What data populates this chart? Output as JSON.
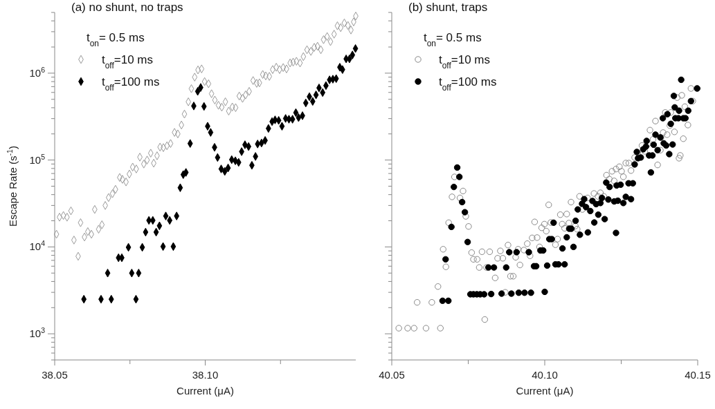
{
  "chart_data": [
    {
      "type": "scatter",
      "title": "(a) no shunt, no traps",
      "legend_title": "t$_{on}$= 0.5 ms",
      "xlabel": "Current (μA)",
      "ylabel": "Escape Rate (s$^{-1}$)",
      "log": "y",
      "legend": "top left",
      "grid": false,
      "xlim": [
        38.05,
        38.15
      ],
      "xticks": [
        38.05,
        {
          "value": 38.075,
          "label": null
        },
        {
          "value": 38.1,
          "label": "38.10"
        },
        {
          "value": 38.125,
          "label": null
        }
      ],
      "ylim": [
        500,
        5000000
      ],
      "yticks": [
        {
          "value": 500,
          "label": null
        },
        {
          "value": 600,
          "label": null
        },
        {
          "value": 700,
          "label": null
        },
        {
          "value": 800,
          "label": null
        },
        {
          "value": 900,
          "label": null
        },
        {
          "value": 1000,
          "label": "10$^{3}$"
        },
        {
          "value": 2000,
          "label": null
        },
        {
          "value": 3000,
          "label": null
        },
        {
          "value": 4000,
          "label": null
        },
        {
          "value": 5000,
          "label": null
        },
        {
          "value": 6000,
          "label": null
        },
        {
          "value": 7000,
          "label": null
        },
        {
          "value": 8000,
          "label": null
        },
        {
          "value": 9000,
          "label": null
        },
        {
          "value": 10000,
          "label": "10$^{4}$"
        },
        {
          "value": 20000,
          "label": null
        },
        {
          "value": 30000,
          "label": null
        },
        {
          "value": 40000,
          "label": null
        },
        {
          "value": 50000,
          "label": null
        },
        {
          "value": 60000,
          "label": null
        },
        {
          "value": 70000,
          "label": null
        },
        {
          "value": 80000,
          "label": null
        },
        {
          "value": 90000,
          "label": null
        },
        {
          "value": 100000,
          "label": "10$^{5}$"
        },
        {
          "value": 200000,
          "label": null
        },
        {
          "value": 300000,
          "label": null
        },
        {
          "value": 400000,
          "label": null
        },
        {
          "value": 500000,
          "label": null
        },
        {
          "value": 600000,
          "label": null
        },
        {
          "value": 700000,
          "label": null
        },
        {
          "value": 800000,
          "label": null
        },
        {
          "value": 900000,
          "label": null
        },
        {
          "value": 1000000,
          "label": "10$^{6}$"
        },
        {
          "value": 2000000,
          "label": null
        },
        {
          "value": 3000000,
          "label": null
        },
        {
          "value": 4000000,
          "label": null
        },
        {
          "value": 5000000,
          "label": null
        }
      ],
      "marker": "diamond",
      "series": [
        {
          "name": "t$_{off}$=10 ms",
          "color": "#999999",
          "x": [
            38.0506,
            38.0516,
            38.0529,
            38.0541,
            38.0554,
            38.0564,
            38.0578,
            38.0586,
            38.0599,
            38.061,
            38.0622,
            38.0633,
            38.0646,
            38.0657,
            38.0668,
            38.0679,
            38.0692,
            38.0702,
            38.0716,
            38.0725,
            38.0737,
            38.0748,
            38.0759,
            38.0771,
            38.0783,
            38.0796,
            38.0807,
            38.0819,
            38.0829,
            38.084,
            38.085,
            38.0861,
            38.0873,
            38.0885,
            38.0898,
            38.0909,
            38.0921,
            38.0931,
            38.0944,
            38.0954,
            38.0965,
            38.0976,
            38.0988,
            38.0998,
            38.1011,
            38.1021,
            38.1032,
            38.1044,
            38.1055,
            38.1067,
            38.1078,
            38.109,
            38.1101,
            38.1113,
            38.1124,
            38.1134,
            38.1146,
            38.1159,
            38.1171,
            38.118,
            38.1191,
            38.1201,
            38.1213,
            38.1224,
            38.1236,
            38.1247,
            38.1259,
            38.127,
            38.1282,
            38.1292,
            38.1303,
            38.1315,
            38.1326,
            38.1338,
            38.1351,
            38.1362,
            38.1373,
            38.1384,
            38.1393,
            38.1405,
            38.1416,
            38.1428,
            38.1439,
            38.145,
            38.1462,
            38.1474,
            38.1484,
            38.1493,
            38.15
          ],
          "values": [
            14000,
            22000,
            23000,
            22000,
            26000,
            12000,
            7800,
            19000,
            13000,
            15000,
            14000,
            27000,
            16000,
            18000,
            30000,
            37000,
            41000,
            46000,
            63000,
            60000,
            56000,
            69000,
            83000,
            79000,
            108000,
            90000,
            100000,
            120000,
            92000,
            112000,
            141000,
            139000,
            146000,
            155000,
            208000,
            200000,
            253000,
            338000,
            468000,
            663000,
            900000,
            1090000,
            1120000,
            800000,
            755000,
            580000,
            490000,
            427000,
            406000,
            468000,
            366000,
            408000,
            401000,
            545000,
            513000,
            562000,
            617000,
            822000,
            764000,
            774000,
            966000,
            931000,
            918000,
            1100000,
            1170000,
            1100000,
            1160000,
            1120000,
            1310000,
            1340000,
            1370000,
            1310000,
            1550000,
            1860000,
            1780000,
            1980000,
            2040000,
            1860000,
            2430000,
            2640000,
            2310000,
            2810000,
            3510000,
            3340000,
            3780000,
            3540000,
            3140000,
            3890000,
            4540000
          ]
        },
        {
          "name": "t$_{off}$=100 ms",
          "color": "#000000",
          "x": [
            38.0597,
            38.0654,
            38.0688,
            38.077,
            38.0676,
            38.0756,
            38.0779,
            38.0712,
            38.0723,
            38.0745,
            38.0791,
            38.086,
            38.0894,
            38.0802,
            38.0837,
            38.0813,
            38.0826,
            38.0848,
            38.0869,
            38.0882,
            38.0905,
            38.0917,
            38.0927,
            38.0936,
            38.095,
            38.0962,
            38.0975,
            38.0985,
            38.0996,
            38.1008,
            38.1018,
            38.1031,
            38.1041,
            38.1053,
            38.1065,
            38.1076,
            38.1088,
            38.11,
            38.1111,
            38.1121,
            38.1132,
            38.1144,
            38.1155,
            38.1167,
            38.1174,
            38.1187,
            38.1199,
            38.121,
            38.1222,
            38.1232,
            38.1244,
            38.1255,
            38.1267,
            38.1278,
            38.129,
            38.1301,
            38.131,
            38.1323,
            38.1334,
            38.1346,
            38.1357,
            38.1368,
            38.1378,
            38.139,
            38.1401,
            38.1413,
            38.1424,
            38.1435,
            38.1447,
            38.1456,
            38.1468,
            38.1479,
            38.1489,
            38.1499
          ],
          "values": [
            2500,
            2500,
            2500,
            2500,
            5000,
            5000,
            5000,
            7500,
            7500,
            9900,
            9900,
            10100,
            10100,
            14800,
            14800,
            20200,
            20200,
            17500,
            22700,
            20200,
            22700,
            48000,
            68000,
            72000,
            155000,
            419000,
            617000,
            684000,
            414000,
            245000,
            208000,
            140000,
            107000,
            79000,
            74000,
            81000,
            101000,
            98000,
            94000,
            125000,
            150000,
            143000,
            87000,
            110000,
            153000,
            157000,
            168000,
            231000,
            277000,
            290000,
            286000,
            245000,
            301000,
            295000,
            295000,
            351000,
            308000,
            324000,
            454000,
            536000,
            473000,
            562000,
            676000,
            598000,
            719000,
            838000,
            853000,
            865000,
            1170000,
            1100000,
            1460000,
            1460000,
            1620000,
            1920000
          ]
        }
      ]
    },
    {
      "type": "scatter",
      "title": "(b) shunt, traps",
      "legend_title": "t$_{on}$= 0.5 ms",
      "xlabel": "Current (μA)",
      "log": "y",
      "legend": "top left",
      "grid": false,
      "tick_labels": "x",
      "xlim": [
        40.05,
        40.15
      ],
      "xticks": [
        40.05,
        {
          "value": 40.075,
          "label": null
        },
        {
          "value": 40.1,
          "label": "40.10"
        },
        {
          "value": 40.125,
          "label": null
        },
        40.15
      ],
      "ylim": [
        500,
        5000000
      ],
      "yticks": [
        {
          "value": 500,
          "label": null
        },
        {
          "value": 600,
          "label": null
        },
        {
          "value": 700,
          "label": null
        },
        {
          "value": 800,
          "label": null
        },
        {
          "value": 900,
          "label": null
        },
        {
          "value": 1000,
          "label": null
        },
        {
          "value": 2000,
          "label": null
        },
        {
          "value": 3000,
          "label": null
        },
        {
          "value": 4000,
          "label": null
        },
        {
          "value": 5000,
          "label": null
        },
        {
          "value": 6000,
          "label": null
        },
        {
          "value": 7000,
          "label": null
        },
        {
          "value": 8000,
          "label": null
        },
        {
          "value": 9000,
          "label": null
        },
        {
          "value": 10000,
          "label": null
        },
        {
          "value": 20000,
          "label": null
        },
        {
          "value": 30000,
          "label": null
        },
        {
          "value": 40000,
          "label": null
        },
        {
          "value": 50000,
          "label": null
        },
        {
          "value": 60000,
          "label": null
        },
        {
          "value": 70000,
          "label": null
        },
        {
          "value": 80000,
          "label": null
        },
        {
          "value": 90000,
          "label": null
        },
        {
          "value": 100000,
          "label": null
        },
        {
          "value": 200000,
          "label": null
        },
        {
          "value": 300000,
          "label": null
        },
        {
          "value": 400000,
          "label": null
        },
        {
          "value": 500000,
          "label": null
        },
        {
          "value": 600000,
          "label": null
        },
        {
          "value": 700000,
          "label": null
        },
        {
          "value": 800000,
          "label": null
        },
        {
          "value": 900000,
          "label": null
        },
        {
          "value": 1000000,
          "label": null
        },
        {
          "value": 2000000,
          "label": null
        },
        {
          "value": 3000000,
          "label": null
        },
        {
          "value": 4000000,
          "label": null
        },
        {
          "value": 5000000,
          "label": null
        }
      ],
      "marker": "circle",
      "series": [
        {
          "name": "t$_{off}$=10 ms",
          "color": "#888888",
          "x": [
            40.0523,
            40.0552,
            40.0573,
            40.0612,
            40.0659,
            40.0583,
            40.0631,
            40.0651,
            40.0668,
            40.0677,
            40.0686,
            40.0697,
            40.0705,
            40.0723,
            40.0733,
            40.0742,
            40.0751,
            40.0804,
            40.0761,
            40.0767,
            40.0779,
            40.0786,
            40.0795,
            40.081,
            40.082,
            40.0838,
            40.0846,
            40.0855,
            40.0863,
            40.0871,
            40.088,
            40.0888,
            40.0897,
            40.0905,
            40.0913,
            40.0919,
            40.0932,
            40.0943,
            40.0952,
            40.0959,
            40.0967,
            40.0975,
            40.0983,
            40.099,
            40.0999,
            40.1005,
            40.1013,
            40.102,
            40.1035,
            40.1042,
            40.1051,
            40.1057,
            40.1065,
            40.1072,
            40.1079,
            40.1086,
            40.11,
            40.1106,
            40.1114,
            40.1123,
            40.114,
            40.1161,
            40.1174,
            40.1182,
            40.1193,
            40.1202,
            40.1211,
            40.122,
            40.1227,
            40.1233,
            40.1244,
            40.1251,
            40.1257,
            40.1265,
            40.1275,
            40.1282,
            40.1294,
            40.1304,
            40.1318,
            40.1327,
            40.1337,
            40.1344,
            40.1354,
            40.1362,
            40.1369,
            40.1378,
            40.138,
            40.1387,
            40.1394,
            40.14,
            40.1409,
            40.1412,
            40.1424,
            40.1433,
            40.1439,
            40.1443,
            40.1448,
            40.1453,
            40.1458,
            40.1468,
            40.1478,
            40.1484,
            40.1499
          ],
          "values": [
            1160,
            1160,
            1160,
            1160,
            1160,
            2300,
            2300,
            3500,
            9400,
            5900,
            19000,
            37700,
            64000,
            36600,
            44000,
            22500,
            17200,
            1460,
            8600,
            7200,
            7200,
            5800,
            8800,
            5800,
            8800,
            4400,
            7400,
            9000,
            7400,
            3000,
            10500,
            4600,
            4600,
            7600,
            9400,
            6200,
            9200,
            10900,
            7900,
            12700,
            19400,
            12800,
            10000,
            16600,
            18300,
            15200,
            30500,
            19100,
            10600,
            12300,
            23500,
            18300,
            16400,
            23900,
            18800,
            32800,
            17400,
            16000,
            38200,
            27000,
            36600,
            41200,
            38200,
            42000,
            38200,
            67000,
            60400,
            74300,
            57500,
            78800,
            83700,
            74300,
            64200,
            92300,
            92300,
            75700,
            107000,
            122000,
            147000,
            126000,
            153000,
            221000,
            173000,
            281000,
            87900,
            130000,
            182000,
            207000,
            353000,
            196000,
            249000,
            353000,
            211000,
            524000,
            105000,
            113000,
            556000,
            176000,
            411000,
            253000,
            667000,
            477000,
            667000
          ]
        },
        {
          "name": "t$_{off}$=100 ms",
          "color": "#000000",
          "x": [
            40.0666,
            40.0685,
            40.0676,
            40.0695,
            40.0703,
            40.0714,
            40.0721,
            40.073,
            40.0739,
            40.0748,
            40.0757,
            40.0767,
            40.0778,
            40.0789,
            40.0802,
            40.0825,
            40.0859,
            40.0891,
            40.0915,
            40.0934,
            40.0955,
            40.1,
            40.0816,
            40.0834,
            40.0874,
            40.0965,
            40.0972,
            40.1008,
            40.1035,
            40.1045,
            40.1065,
            40.0884,
            40.0908,
            40.0948,
            40.0986,
            40.0995,
            40.1015,
            40.1023,
            40.1029,
            40.1058,
            40.1072,
            40.108,
            40.1087,
            40.1094,
            40.1101,
            40.1108,
            40.1115,
            40.1122,
            40.1129,
            40.1135,
            40.1141,
            40.1149,
            40.1156,
            40.1162,
            40.1168,
            40.1175,
            40.1182,
            40.1187,
            40.1196,
            40.1201,
            40.1208,
            40.1212,
            40.1227,
            40.1233,
            40.1235,
            40.1239,
            40.1248,
            40.1257,
            40.1265,
            40.1274,
            40.1282,
            40.1288,
            40.1294,
            40.1301,
            40.1305,
            40.1314,
            40.1322,
            40.1331,
            40.1333,
            40.1341,
            40.1347,
            40.1352,
            40.1356,
            40.1362,
            40.1369,
            40.1378,
            40.1386,
            40.1389,
            40.1397,
            40.1401,
            40.1407,
            40.1412,
            40.1418,
            40.1422,
            40.1425,
            40.1427,
            40.1437,
            40.1439,
            40.1446,
            40.1453,
            40.146,
            40.1469,
            40.1478,
            40.1498
          ],
          "values": [
            2400,
            2400,
            7200,
            17000,
            49000,
            82000,
            64000,
            32800,
            25100,
            11400,
            2850,
            2850,
            2850,
            2850,
            2850,
            2870,
            2900,
            2900,
            2970,
            2970,
            2970,
            3040,
            5800,
            5800,
            5800,
            6000,
            6000,
            6100,
            6300,
            6300,
            6300,
            8700,
            8700,
            8700,
            9100,
            9100,
            12300,
            12300,
            19000,
            9600,
            12900,
            16200,
            16200,
            10000,
            20000,
            27000,
            13800,
            31400,
            35500,
            28700,
            14700,
            25900,
            33800,
            19100,
            31100,
            23500,
            32000,
            36600,
            20900,
            55000,
            35100,
            49000,
            33400,
            14500,
            51000,
            34000,
            52000,
            32000,
            37700,
            54000,
            35500,
            54000,
            89000,
            124000,
            105000,
            107000,
            133000,
            143000,
            166000,
            113000,
            72000,
            113000,
            150000,
            196000,
            130000,
            182000,
            303000,
            156000,
            147000,
            337000,
            117000,
            261000,
            151000,
            547000,
            404000,
            303000,
            303000,
            370000,
            839000,
            303000,
            303000,
            370000,
            477000,
            667000
          ]
        }
      ]
    }
  ]
}
